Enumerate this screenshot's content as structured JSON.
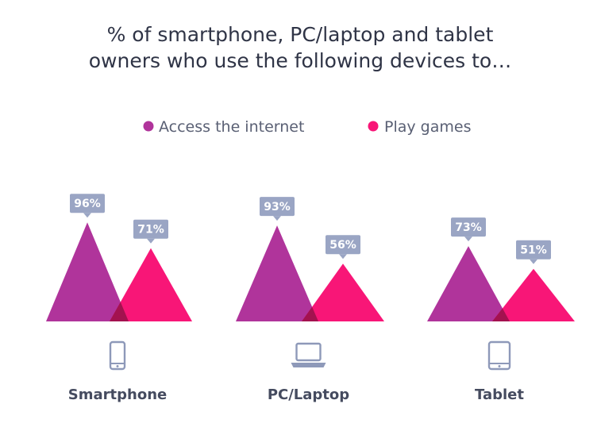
{
  "colors": {
    "series_1": "#b0349b",
    "series_2": "#f81677",
    "overlap": "#a3124f",
    "badge": "#9aa5c4",
    "icon": "#8e99b9"
  },
  "chart_data": {
    "type": "area",
    "title": "% of smartphone, PC/laptop and tablet owners who use the following devices to…",
    "title_lines": [
      "% of smartphone, PC/laptop and tablet",
      "owners who use the following devices to…"
    ],
    "legend_position": "top-center",
    "categories": [
      "Smartphone",
      "PC/Laptop",
      "Tablet"
    ],
    "category_icons": [
      "smartphone-icon",
      "laptop-icon",
      "tablet-icon"
    ],
    "series": [
      {
        "name": "Access the internet",
        "values": [
          96,
          93,
          73
        ]
      },
      {
        "name": "Play games",
        "values": [
          71,
          56,
          51
        ]
      }
    ],
    "value_labels": [
      [
        "96%",
        "93%",
        "73%"
      ],
      [
        "71%",
        "56%",
        "51%"
      ]
    ],
    "ylim": [
      0,
      100
    ],
    "grid": false
  }
}
